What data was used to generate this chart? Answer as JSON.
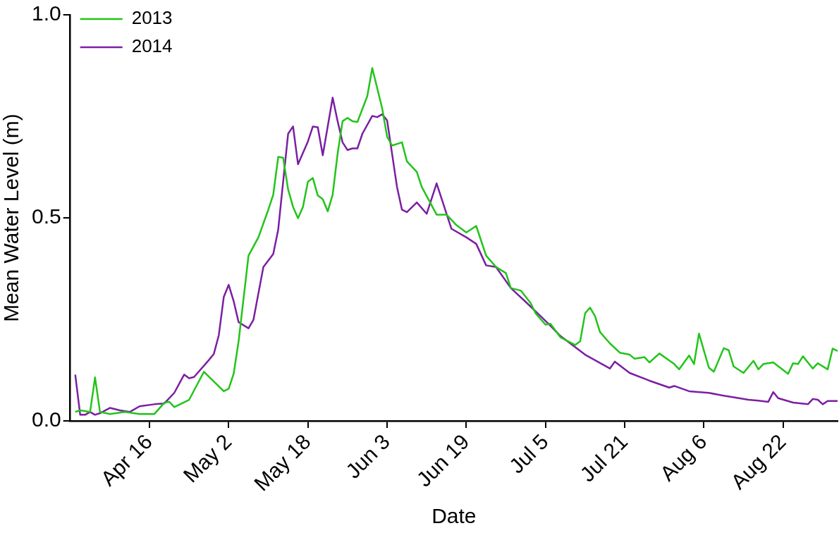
{
  "chart_data": {
    "type": "line",
    "xlabel": "Date",
    "ylabel": "Mean Water Level (m)",
    "xlim": [
      "--03-31",
      "--09-02"
    ],
    "xticks": [
      {
        "value": "--04-16",
        "label": "Apr 16"
      },
      {
        "value": "--05-02",
        "label": "May 2"
      },
      {
        "value": "--05-18",
        "label": "May 18"
      },
      {
        "value": "--06-03",
        "label": "Jun 3"
      },
      {
        "value": "--06-19",
        "label": "Jun 19"
      },
      {
        "value": "--07-05",
        "label": "Jul 5"
      },
      {
        "value": "--07-21",
        "label": "Jul 21"
      },
      {
        "value": "--08-06",
        "label": "Aug 6"
      },
      {
        "value": "--08-22",
        "label": "Aug 22"
      }
    ],
    "ylim": [
      0,
      1
    ],
    "yticks": [
      {
        "value": 0,
        "label": "0.0"
      },
      {
        "value": 0.5,
        "label": "0.5"
      },
      {
        "value": 1,
        "label": "1.0"
      }
    ],
    "grid": false,
    "legend": "top left",
    "marker": "none",
    "line_style": "solid",
    "series": [
      {
        "name": "2013",
        "color": "#22c41a",
        "x": [
          "--04-01",
          "--04-02",
          "--04-04",
          "--04-05",
          "--04-06",
          "--04-08",
          "--04-11",
          "--04-14",
          "--04-17",
          "--04-19",
          "--04-20",
          "--04-21",
          "--04-24",
          "--04-27",
          "--04-29",
          "--05-01",
          "--05-02",
          "--05-03",
          "--05-04",
          "--05-06",
          "--05-08",
          "--05-10",
          "--05-11",
          "--05-12",
          "--05-13",
          "--05-14",
          "--05-15",
          "--05-16",
          "--05-17",
          "--05-18",
          "--05-19",
          "--05-20",
          "--05-21",
          "--05-22",
          "--05-23",
          "--05-24",
          "--05-25",
          "--05-26",
          "--05-27",
          "--05-28",
          "--05-30",
          "--05-31",
          "--06-02",
          "--06-03",
          "--06-04",
          "--06-06",
          "--06-07",
          "--06-09",
          "--06-10",
          "--06-13",
          "--06-15",
          "--06-17",
          "--06-19",
          "--06-21",
          "--06-23",
          "--06-25",
          "--06-27",
          "--06-28",
          "--06-30",
          "--07-02",
          "--07-03",
          "--07-05",
          "--07-06",
          "--07-08",
          "--07-11",
          "--07-12",
          "--07-13",
          "--07-14",
          "--07-15",
          "--07-16",
          "--07-18",
          "--07-20",
          "--07-22",
          "--07-23",
          "--07-25",
          "--07-26",
          "--07-28",
          "--07-31",
          "--08-01",
          "--08-03",
          "--08-04",
          "--08-05",
          "--08-07",
          "--08-08",
          "--08-10",
          "--08-11",
          "--08-12",
          "--08-14",
          "--08-16",
          "--08-17",
          "--08-18",
          "--08-20",
          "--08-23",
          "--08-24",
          "--08-25",
          "--08-26",
          "--08-28",
          "--08-29",
          "--08-31",
          "--09-01",
          "--09-02"
        ],
        "values": [
          0.022,
          0.026,
          0.022,
          0.107,
          0.022,
          0.017,
          0.022,
          0.017,
          0.017,
          0.045,
          0.047,
          0.034,
          0.052,
          0.121,
          0.097,
          0.073,
          0.079,
          0.116,
          0.196,
          0.407,
          0.452,
          0.52,
          0.557,
          0.65,
          0.648,
          0.57,
          0.527,
          0.499,
          0.527,
          0.589,
          0.598,
          0.555,
          0.546,
          0.516,
          0.557,
          0.658,
          0.738,
          0.746,
          0.738,
          0.736,
          0.8,
          0.869,
          0.77,
          0.7,
          0.678,
          0.686,
          0.639,
          0.613,
          0.576,
          0.508,
          0.508,
          0.482,
          0.464,
          0.48,
          0.407,
          0.379,
          0.364,
          0.327,
          0.321,
          0.29,
          0.265,
          0.237,
          0.239,
          0.206,
          0.187,
          0.196,
          0.265,
          0.279,
          0.258,
          0.219,
          0.191,
          0.168,
          0.163,
          0.153,
          0.157,
          0.144,
          0.166,
          0.14,
          0.127,
          0.161,
          0.14,
          0.215,
          0.131,
          0.121,
          0.179,
          0.174,
          0.134,
          0.118,
          0.148,
          0.127,
          0.14,
          0.144,
          0.116,
          0.142,
          0.14,
          0.159,
          0.129,
          0.142,
          0.127,
          0.178,
          0.172
        ]
      },
      {
        "name": "2014",
        "color": "#7b1fa2",
        "x": [
          "--04-01",
          "--04-02",
          "--04-03",
          "--04-04",
          "--04-05",
          "--04-06",
          "--04-08",
          "--04-10",
          "--04-12",
          "--04-14",
          "--04-17",
          "--04-19",
          "--04-21",
          "--04-23",
          "--04-24",
          "--04-25",
          "--04-28",
          "--04-29",
          "--04-30",
          "--05-01",
          "--05-02",
          "--05-03",
          "--05-04",
          "--05-06",
          "--05-07",
          "--05-09",
          "--05-11",
          "--05-12",
          "--05-14",
          "--05-15",
          "--05-16",
          "--05-18",
          "--05-19",
          "--05-20",
          "--05-21",
          "--05-23",
          "--05-24",
          "--05-25",
          "--05-26",
          "--05-27",
          "--05-28",
          "--05-29",
          "--05-31",
          "--06-01",
          "--06-02",
          "--06-03",
          "--06-05",
          "--06-06",
          "--06-07",
          "--06-09",
          "--06-11",
          "--06-13",
          "--06-16",
          "--06-19",
          "--06-21",
          "--06-23",
          "--06-25",
          "--06-28",
          "--07-01",
          "--07-04",
          "--07-06",
          "--07-08",
          "--07-13",
          "--07-18",
          "--07-19",
          "--07-22",
          "--07-26",
          "--07-30",
          "--07-31",
          "--08-03",
          "--08-07",
          "--08-10",
          "--08-12",
          "--08-15",
          "--08-17",
          "--08-19",
          "--08-20",
          "--08-21",
          "--08-24",
          "--08-27",
          "--08-28",
          "--08-29",
          "--08-30",
          "--08-31",
          "--09-02"
        ],
        "values": [
          0.114,
          0.015,
          0.015,
          0.022,
          0.015,
          0.019,
          0.032,
          0.026,
          0.022,
          0.036,
          0.041,
          0.043,
          0.069,
          0.114,
          0.105,
          0.108,
          0.15,
          0.165,
          0.211,
          0.305,
          0.335,
          0.295,
          0.243,
          0.228,
          0.249,
          0.379,
          0.411,
          0.471,
          0.707,
          0.725,
          0.632,
          0.688,
          0.725,
          0.723,
          0.654,
          0.796,
          0.738,
          0.686,
          0.667,
          0.671,
          0.671,
          0.707,
          0.751,
          0.748,
          0.755,
          0.74,
          0.576,
          0.52,
          0.514,
          0.538,
          0.51,
          0.585,
          0.473,
          0.452,
          0.436,
          0.383,
          0.379,
          0.327,
          0.293,
          0.258,
          0.234,
          0.209,
          0.163,
          0.129,
          0.146,
          0.118,
          0.099,
          0.082,
          0.086,
          0.073,
          0.069,
          0.062,
          0.058,
          0.052,
          0.05,
          0.047,
          0.071,
          0.056,
          0.045,
          0.041,
          0.054,
          0.052,
          0.041,
          0.049,
          0.049
        ]
      }
    ]
  }
}
